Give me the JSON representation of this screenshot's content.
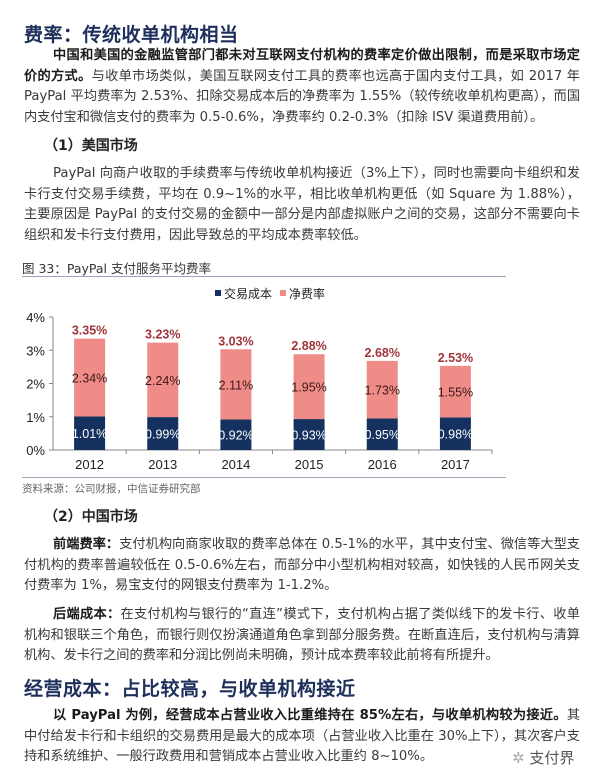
{
  "section1": {
    "title": "费率：传统收单机构相当",
    "para1_bold": "中国和美国的金融监管部门都未对互联网支付机构的费率定价做出限制，而是采取市场定价的方式。",
    "para1_rest": "与收单市场类似，美国互联网支付工具的费率也远高于国内支付工具，如 2017 年 PayPal 平均费率为 2.53%、扣除交易成本后的净费率为 1.55%（较传统收单机构更高），而国内支付宝和微信支付的费率为 0.5-0.6%，净费率约 0.2-0.3%（扣除 ISV 渠道费用前）。",
    "sub1": "（1）美国市场",
    "para2": "PayPal 向商户收取的手续费率与传统收单机构接近（3%上下），同时也需要向卡组织和发卡行支付交易手续费，平均在 0.9~1%的水平，相比收单机构更低（如 Square 为 1.88%），主要原因是 PayPal 的支付交易的金额中一部分是内部虚拟账户之间的交易，这部分不需要向卡组织和发卡行支付费用，因此导致总的平均成本费率较低。",
    "figure_caption": "图 33：PayPal 支付服务平均费率",
    "source": "资料来源：公司财报，中信证券研究部",
    "sub2": "（2）中国市场",
    "para3_bold": "前端费率：",
    "para3_rest": "支付机构向商家收取的费率总体在 0.5-1%的水平，其中支付宝、微信等大型支付机构的费率普遍较低在 0.5-0.6%左右，而部分中小型机构相对较高，如快钱的人民币网关支付费率为 1%，易宝支付的网银支付费率为 1-1.2%。",
    "para4_bold": "后端成本：",
    "para4_rest": "在支付机构与银行的“直连”模式下，支付机构占据了类似线下的发卡行、收单机构和银联三个角色，而银行则仅扮演通道角色拿到部分服务费。在断直连后，支付机构与清算机构、发卡行之间的费率和分润比例尚未明确，预计成本费率较此前将有所提升。"
  },
  "section2": {
    "title": "经营成本：占比较高，与收单机构接近",
    "para_bold": "以 PayPal 为例，经营成本占营业收入比重维持在 85%左右，与收单机构较为接近。",
    "para_rest": "其中付给发卡行和卡组织的交易费用是最大的成本项（占营业收入比重在 30%上下），其次客户支持和系统维护、一般行政费用和营销成本占营业收入比重约 8~10%。"
  },
  "watermark": "支付界",
  "chart_data": {
    "type": "bar",
    "stacked": true,
    "categories": [
      "2012",
      "2013",
      "2014",
      "2015",
      "2016",
      "2017"
    ],
    "series": [
      {
        "name": "交易成本",
        "values": [
          1.01,
          0.99,
          0.92,
          0.93,
          0.95,
          0.98
        ],
        "labels": [
          "1.01%",
          "0.99%",
          "0.92%",
          "0.93%",
          "0.95%",
          "0.98%"
        ],
        "color": "#14315f"
      },
      {
        "name": "净费率",
        "values": [
          2.34,
          2.24,
          2.11,
          1.95,
          1.73,
          1.55
        ],
        "labels": [
          "2.34%",
          "2.24%",
          "2.11%",
          "1.95%",
          "1.73%",
          "1.55%"
        ],
        "color": "#f08c88"
      }
    ],
    "totals": [
      "3.35%",
      "3.23%",
      "3.03%",
      "2.88%",
      "2.68%",
      "2.53%"
    ],
    "total_color": "#a0353a",
    "yticks": [
      "0%",
      "1%",
      "2%",
      "3%",
      "4%"
    ],
    "ylim": [
      0,
      4
    ],
    "legend": "top-center",
    "grid": false
  }
}
